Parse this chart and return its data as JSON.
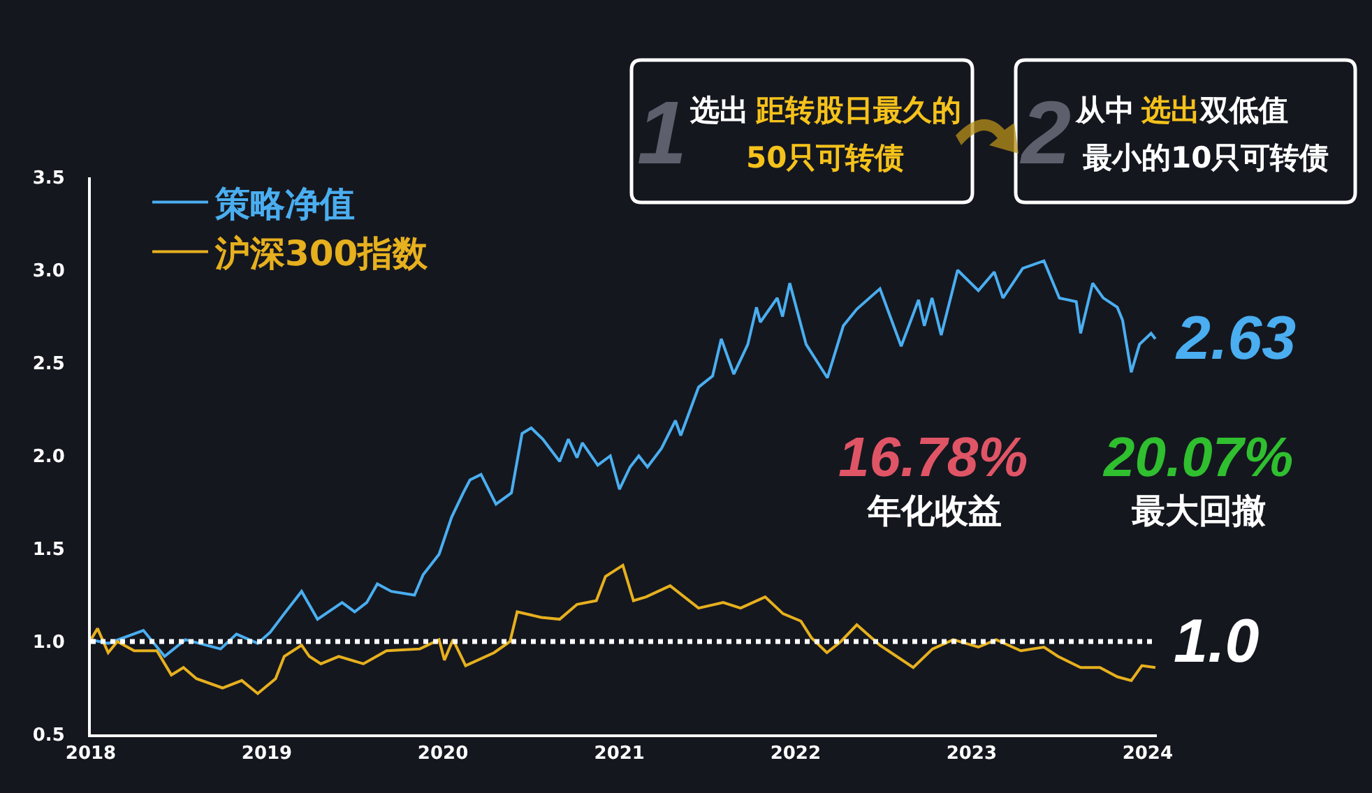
{
  "chart_data": {
    "type": "line",
    "xlim": [
      "2018-01-01",
      "2024-01-20"
    ],
    "xticks": [
      "2018",
      "2019",
      "2020",
      "2021",
      "2022",
      "2023",
      "2024"
    ],
    "ylim": [
      0.5,
      3.5
    ],
    "yticks": [
      0.5,
      {
        "value": 1,
        "label": "1.0"
      },
      1.5,
      {
        "value": 2,
        "label": "2.0"
      },
      2.5,
      {
        "value": 3,
        "label": "3.0"
      },
      3.5
    ],
    "grid": false,
    "legend": "top left",
    "line_style": "solid",
    "ref_lines": [
      {
        "axis": "y",
        "value": 1,
        "label": "1.0",
        "color": "#ffffff",
        "line_style": "dotted"
      }
    ],
    "annotations": [
      "1",
      "2",
      "选出",
      "距转股日最久的",
      "50只可转债",
      "从中",
      "选出",
      "双低值",
      "最小的10只可转债",
      {
        "text": "2.63",
        "x": "2024-01-17",
        "y": 2.63
      },
      "16.78%",
      "年化收益",
      "20.07%",
      "最大回撤"
    ],
    "series": [
      {
        "name": "策略净值",
        "color": "#4aaef0",
        "x": [
          "2018-01-01",
          "2018-02-06",
          "2018-04-20",
          "2018-06-03",
          "2018-07-16",
          "2018-09-27",
          "2018-10-30",
          "2018-12-13",
          "2019-01-08",
          "2019-02-06",
          "2019-03-14",
          "2019-04-16",
          "2019-06-06",
          "2019-07-02",
          "2019-07-27",
          "2019-08-18",
          "2019-09-16",
          "2019-11-03",
          "2019-11-21",
          "2019-12-24",
          "2020-01-19",
          "2020-02-12",
          "2020-02-26",
          "2020-03-20",
          "2020-04-20",
          "2020-05-22",
          "2020-06-13",
          "2020-07-02",
          "2020-07-26",
          "2020-08-30",
          "2020-09-17",
          "2020-10-05",
          "2020-10-16",
          "2020-11-17",
          "2020-12-13",
          "2021-01-01",
          "2021-01-23",
          "2021-02-10",
          "2021-02-28",
          "2021-03-29",
          "2021-04-27",
          "2021-05-08",
          "2021-06-14",
          "2021-07-13",
          "2021-07-31",
          "2021-08-26",
          "2021-09-24",
          "2021-10-12",
          "2021-10-20",
          "2021-11-24",
          "2021-12-05",
          "2021-12-20",
          "2022-01-23",
          "2022-03-08",
          "2022-04-10",
          "2022-05-08",
          "2022-06-25",
          "2022-08-08",
          "2022-09-13",
          "2022-09-25",
          "2022-10-11",
          "2022-10-30",
          "2022-12-03",
          "2023-01-15",
          "2023-02-17",
          "2023-03-07",
          "2023-04-17",
          "2023-05-31",
          "2023-07-02",
          "2023-08-06",
          "2023-08-15",
          "2023-09-09",
          "2023-10-01",
          "2023-10-30",
          "2023-11-10",
          "2023-11-28",
          "2023-12-15",
          "2024-01-08",
          "2024-01-17"
        ],
        "values": [
          1.01,
          0.99,
          1.06,
          0.92,
          1.01,
          0.96,
          1.04,
          0.99,
          1.05,
          1.15,
          1.27,
          1.12,
          1.21,
          1.16,
          1.21,
          1.31,
          1.27,
          1.25,
          1.36,
          1.47,
          1.67,
          1.8,
          1.87,
          1.9,
          1.74,
          1.8,
          2.12,
          2.15,
          2.09,
          1.97,
          2.09,
          1.99,
          2.07,
          1.95,
          2.0,
          1.82,
          1.94,
          2.0,
          1.94,
          2.04,
          2.19,
          2.11,
          2.37,
          2.43,
          2.63,
          2.44,
          2.6,
          2.8,
          2.72,
          2.85,
          2.75,
          2.93,
          2.6,
          2.42,
          2.7,
          2.79,
          2.9,
          2.59,
          2.84,
          2.7,
          2.85,
          2.65,
          3.0,
          2.89,
          2.99,
          2.85,
          3.01,
          3.05,
          2.85,
          2.83,
          2.66,
          2.93,
          2.85,
          2.8,
          2.73,
          2.45,
          2.6,
          2.66,
          2.63
        ]
      },
      {
        "name": "沪深300指数",
        "color": "#e6b01e",
        "x": [
          "2018-01-01",
          "2018-01-15",
          "2018-02-06",
          "2018-02-25",
          "2018-04-01",
          "2018-05-18",
          "2018-06-17",
          "2018-07-12",
          "2018-08-08",
          "2018-10-01",
          "2018-11-10",
          "2018-12-13",
          "2019-01-19",
          "2019-02-06",
          "2019-03-14",
          "2019-03-30",
          "2019-04-23",
          "2019-05-30",
          "2019-07-20",
          "2019-09-06",
          "2019-11-14",
          "2019-12-24",
          "2020-01-04",
          "2020-01-22",
          "2020-02-17",
          "2020-04-16",
          "2020-05-19",
          "2020-06-03",
          "2020-07-23",
          "2020-08-30",
          "2020-10-05",
          "2020-11-14",
          "2020-12-03",
          "2021-01-08",
          "2021-01-30",
          "2021-02-25",
          "2021-04-16",
          "2021-06-14",
          "2021-08-04",
          "2021-09-09",
          "2021-10-30",
          "2021-12-06",
          "2022-01-12",
          "2022-02-03",
          "2022-03-07",
          "2022-04-05",
          "2022-05-08",
          "2022-06-25",
          "2022-09-02",
          "2022-10-12",
          "2022-11-24",
          "2023-01-15",
          "2023-02-21",
          "2023-04-13",
          "2023-05-31",
          "2023-06-29",
          "2023-08-15",
          "2023-09-24",
          "2023-10-30",
          "2023-11-28",
          "2023-12-20",
          "2024-01-17"
        ],
        "values": [
          1.01,
          1.07,
          0.94,
          1.0,
          0.95,
          0.95,
          0.82,
          0.86,
          0.8,
          0.75,
          0.79,
          0.72,
          0.8,
          0.92,
          0.98,
          0.92,
          0.88,
          0.92,
          0.88,
          0.95,
          0.96,
          1.01,
          0.9,
          1.01,
          0.87,
          0.94,
          1.0,
          1.16,
          1.13,
          1.12,
          1.2,
          1.22,
          1.35,
          1.41,
          1.22,
          1.24,
          1.3,
          1.18,
          1.21,
          1.18,
          1.24,
          1.15,
          1.11,
          1.02,
          0.94,
          1.0,
          1.09,
          0.98,
          0.86,
          0.96,
          1.01,
          0.97,
          1.01,
          0.95,
          0.97,
          0.92,
          0.86,
          0.86,
          0.81,
          0.79,
          0.87,
          0.86
        ]
      }
    ]
  }
}
